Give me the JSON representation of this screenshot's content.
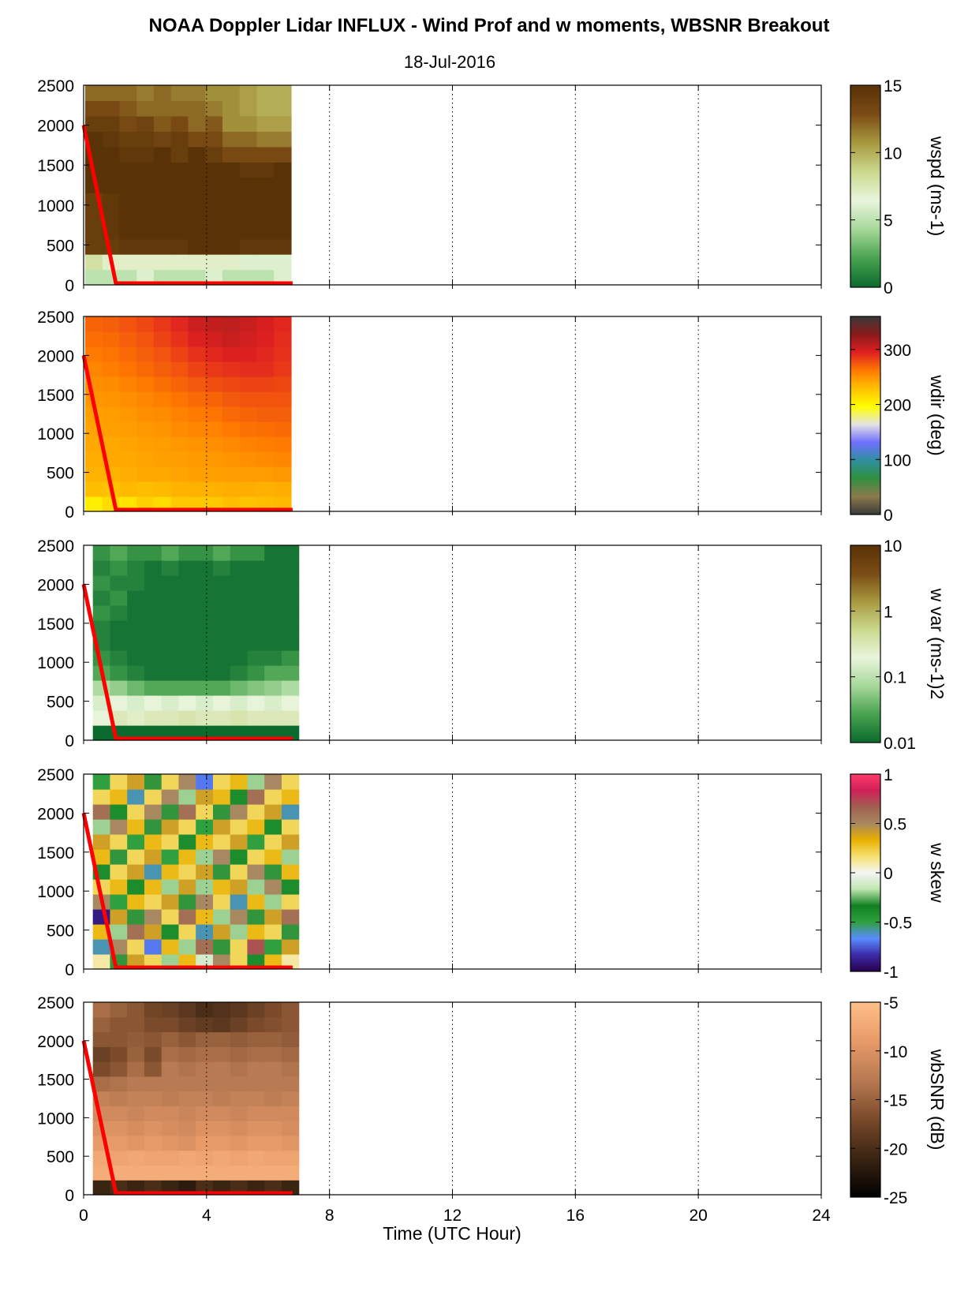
{
  "title": "NOAA Doppler Lidar INFLUX - Wind Prof and w moments, WBSNR Breakout",
  "subtitle": "18-Jul-2016",
  "chart_data": {
    "type": "heatmap",
    "xlabel": "Time (UTC Hour)",
    "xlim": [
      0,
      24
    ],
    "xticks": [
      0,
      4,
      8,
      12,
      16,
      20,
      24
    ],
    "gridlines_x": [
      4,
      8,
      12,
      16,
      20,
      24
    ],
    "ylim": [
      0,
      2500
    ],
    "yticks": [
      0,
      500,
      1000,
      1500,
      2000,
      2500
    ],
    "data_time_range": [
      0.3,
      7.0
    ],
    "overlay_line": {
      "color": "#ff0000",
      "x": [
        0,
        1.05,
        6.8
      ],
      "y": [
        2000,
        20,
        20
      ]
    },
    "panels": [
      {
        "variable": "wspd",
        "colorbar_label": "wspd (ms-1)",
        "clim": [
          0,
          15
        ],
        "colorbar_ticks": [
          0,
          5,
          10,
          15
        ],
        "colorbar_ticklabels": [
          "0",
          "5",
          "10",
          "15"
        ],
        "colormap": [
          "#0b6b2e",
          "#48a24f",
          "#a6d89a",
          "#e9f5dc",
          "#cbd98e",
          "#a8993f",
          "#7a4b14",
          "#5a3207"
        ],
        "x_start": 0.05,
        "x_end": 6.75,
        "rows": [
          [
            5,
            5,
            5,
            6,
            5,
            5,
            5,
            6,
            5,
            5,
            5,
            6
          ],
          [
            8,
            7,
            7,
            7,
            7,
            7,
            7,
            7,
            7,
            6,
            6,
            6
          ],
          [
            14,
            14,
            14.5,
            14.5,
            14.5,
            14.5,
            15,
            15,
            15,
            14.5,
            14.5,
            14.5
          ],
          [
            14,
            14.5,
            15,
            15,
            15,
            15,
            15,
            15,
            15,
            15,
            15,
            15
          ],
          [
            14,
            14.5,
            15,
            15,
            15,
            15,
            15,
            15,
            15,
            15,
            15,
            15
          ],
          [
            14,
            14.5,
            15,
            15,
            15,
            15,
            15,
            15,
            15,
            15,
            15,
            15
          ],
          [
            15,
            15,
            15,
            15,
            15,
            15,
            15,
            15,
            15,
            15,
            15,
            15
          ],
          [
            15,
            15,
            15,
            15,
            15,
            15,
            15,
            15,
            15,
            14.5,
            14.5,
            15
          ],
          [
            15,
            15,
            14.5,
            14.5,
            15,
            14,
            15,
            14,
            13,
            13,
            13,
            13
          ],
          [
            15,
            14.5,
            14,
            14,
            13.5,
            14,
            13,
            13,
            12,
            12,
            11.5,
            11.5
          ],
          [
            14,
            14,
            13,
            13.5,
            12.5,
            13,
            12,
            12.5,
            11,
            11,
            10.5,
            10.5
          ],
          [
            13,
            13,
            12.5,
            12,
            12,
            12,
            12,
            11.5,
            11,
            10.5,
            10,
            10
          ],
          [
            12,
            12,
            12,
            11.5,
            12,
            11.5,
            11.5,
            11,
            11,
            10.5,
            10,
            10
          ]
        ]
      },
      {
        "variable": "wdir",
        "colorbar_label": "wdir (deg)",
        "clim": [
          0,
          360
        ],
        "colorbar_ticks": [
          0,
          100,
          200,
          300
        ],
        "colorbar_ticklabels": [
          "0",
          "100",
          "200",
          "300"
        ],
        "colormap": [
          "#3a3a3a",
          "#8d7a4c",
          "#2f8f3f",
          "#2f8f9f",
          "#6f6fff",
          "#e3e3e3",
          "#ffff00",
          "#ffc000",
          "#ff7a00",
          "#e02020",
          "#8a1a1a",
          "#3a3a3a"
        ],
        "x_start": 0.05,
        "x_end": 6.75,
        "rows": [
          [
            205,
            215,
            210,
            220,
            215,
            225,
            225,
            225,
            230,
            228,
            230,
            232
          ],
          [
            230,
            228,
            232,
            230,
            232,
            235,
            236,
            236,
            238,
            238,
            236,
            238
          ],
          [
            235,
            236,
            238,
            240,
            240,
            242,
            244,
            244,
            245,
            246,
            246,
            248
          ],
          [
            238,
            240,
            240,
            242,
            244,
            245,
            247,
            248,
            250,
            252,
            254,
            256
          ],
          [
            240,
            240,
            242,
            244,
            246,
            248,
            250,
            252,
            255,
            258,
            260,
            262
          ],
          [
            242,
            244,
            246,
            248,
            250,
            254,
            256,
            258,
            262,
            265,
            266,
            268
          ],
          [
            244,
            246,
            248,
            252,
            254,
            258,
            262,
            264,
            268,
            270,
            272,
            272
          ],
          [
            248,
            250,
            252,
            256,
            260,
            264,
            268,
            270,
            274,
            276,
            276,
            276
          ],
          [
            252,
            254,
            258,
            262,
            266,
            270,
            274,
            278,
            280,
            282,
            282,
            280
          ],
          [
            256,
            260,
            264,
            268,
            272,
            276,
            282,
            286,
            288,
            290,
            290,
            286
          ],
          [
            262,
            264,
            268,
            272,
            276,
            282,
            288,
            292,
            296,
            296,
            292,
            288
          ],
          [
            266,
            268,
            272,
            276,
            282,
            288,
            296,
            300,
            304,
            300,
            296,
            290
          ],
          [
            270,
            272,
            276,
            280,
            286,
            292,
            302,
            306,
            308,
            304,
            298,
            292
          ]
        ]
      },
      {
        "variable": "w var",
        "colorbar_label": "w var (ms-1)2",
        "clim": [
          0.01,
          10
        ],
        "scale": "log",
        "colorbar_ticks": [
          0.01,
          0.1,
          1,
          10
        ],
        "colorbar_ticklabels": [
          "0.01",
          "0.1",
          "1",
          "10"
        ],
        "colormap": [
          "#0b6b2e",
          "#48a24f",
          "#a6d89a",
          "#e9f5dc",
          "#cbd98e",
          "#a8993f",
          "#7a4b14",
          "#5a3207"
        ],
        "x_start": 0.3,
        "x_end": 7.0,
        "rows": [
          [
            0.01,
            0.01,
            0.01,
            0.01,
            0.01,
            0.01,
            0.01,
            0.01,
            0.01,
            0.01,
            0.01,
            0.01
          ],
          [
            0.2,
            0.3,
            0.25,
            0.3,
            0.3,
            0.35,
            0.3,
            0.3,
            0.35,
            0.3,
            0.3,
            0.3
          ],
          [
            0.15,
            0.2,
            0.15,
            0.2,
            0.15,
            0.2,
            0.15,
            0.2,
            0.15,
            0.2,
            0.15,
            0.2
          ],
          [
            0.08,
            0.06,
            0.04,
            0.03,
            0.03,
            0.03,
            0.03,
            0.03,
            0.04,
            0.05,
            0.06,
            0.08
          ],
          [
            0.03,
            0.02,
            0.015,
            0.012,
            0.012,
            0.012,
            0.012,
            0.012,
            0.015,
            0.02,
            0.03,
            0.03
          ],
          [
            0.02,
            0.015,
            0.012,
            0.012,
            0.012,
            0.012,
            0.012,
            0.012,
            0.012,
            0.015,
            0.015,
            0.02
          ],
          [
            0.015,
            0.012,
            0.012,
            0.012,
            0.012,
            0.012,
            0.012,
            0.012,
            0.012,
            0.012,
            0.012,
            0.012
          ],
          [
            0.015,
            0.012,
            0.012,
            0.012,
            0.012,
            0.012,
            0.012,
            0.012,
            0.012,
            0.012,
            0.012,
            0.012
          ],
          [
            0.02,
            0.015,
            0.012,
            0.012,
            0.012,
            0.012,
            0.012,
            0.012,
            0.012,
            0.012,
            0.012,
            0.012
          ],
          [
            0.015,
            0.02,
            0.012,
            0.012,
            0.012,
            0.012,
            0.012,
            0.012,
            0.012,
            0.012,
            0.012,
            0.012
          ],
          [
            0.02,
            0.015,
            0.015,
            0.012,
            0.012,
            0.012,
            0.012,
            0.012,
            0.012,
            0.012,
            0.012,
            0.012
          ],
          [
            0.015,
            0.02,
            0.015,
            0.012,
            0.015,
            0.012,
            0.012,
            0.015,
            0.012,
            0.012,
            0.012,
            0.012
          ],
          [
            0.02,
            0.03,
            0.02,
            0.02,
            0.03,
            0.02,
            0.02,
            0.03,
            0.02,
            0.02,
            0.012,
            0.012
          ]
        ]
      },
      {
        "variable": "w skew",
        "colorbar_label": "w skew",
        "clim": [
          -1,
          1
        ],
        "colorbar_ticks": [
          -1,
          -0.5,
          0,
          0.5,
          1
        ],
        "colorbar_ticklabels": [
          "-1",
          "-0.5",
          "0",
          "0.5",
          "1"
        ],
        "colormap": [
          "#2a004d",
          "#3a2aa8",
          "#5a8cff",
          "#2f9f3f",
          "#0f7f1f",
          "#bfe6b0",
          "#f5f5f5",
          "#f5e070",
          "#e8b000",
          "#a88860",
          "#a06050",
          "#d02058",
          "#ff3a6a"
        ],
        "x_start": 0.3,
        "x_end": 7.0,
        "rows": [
          [
            0.1,
            -0.3,
            0.4,
            0.2,
            -0.2,
            0.3,
            -0.1,
            0.5,
            0.2,
            -0.4,
            0.3,
            0.1
          ],
          [
            -0.6,
            0.5,
            0.2,
            -0.7,
            0.3,
            -0.2,
            0.6,
            -0.3,
            0.2,
            0.7,
            -0.5,
            0.4
          ],
          [
            0.3,
            -0.2,
            0.6,
            0.4,
            -0.4,
            0.2,
            -0.6,
            0.4,
            -0.2,
            0.3,
            0.2,
            -0.3
          ],
          [
            -0.9,
            0.4,
            -0.3,
            0.5,
            0.2,
            0.6,
            0.3,
            -0.2,
            0.5,
            -0.3,
            0.4,
            0.6
          ],
          [
            0.5,
            -0.5,
            0.3,
            0.2,
            0.4,
            -0.3,
            0.5,
            0.2,
            -0.6,
            0.3,
            -0.2,
            0.2
          ],
          [
            0.2,
            0.3,
            -0.4,
            0.3,
            -0.2,
            0.4,
            -0.2,
            0.3,
            0.4,
            -0.2,
            0.5,
            -0.4
          ],
          [
            -0.4,
            0.2,
            0.4,
            -0.6,
            0.3,
            0.2,
            0.4,
            -0.3,
            0.2,
            0.5,
            -0.3,
            0.3
          ],
          [
            0.3,
            -0.3,
            0.2,
            0.4,
            -0.5,
            0.3,
            -0.2,
            0.5,
            -0.4,
            0.2,
            0.3,
            -0.2
          ],
          [
            0.4,
            0.2,
            -0.5,
            0.3,
            0.2,
            -0.4,
            0.3,
            0.2,
            0.4,
            -0.5,
            0.2,
            0.4
          ],
          [
            -0.2,
            0.5,
            0.3,
            -0.3,
            0.4,
            0.2,
            -0.5,
            0.4,
            0.2,
            0.3,
            -0.4,
            0.2
          ],
          [
            0.6,
            -0.4,
            0.2,
            0.5,
            -0.3,
            0.6,
            0.2,
            -0.3,
            0.5,
            0.2,
            0.4,
            -0.6
          ],
          [
            0.2,
            0.3,
            -0.6,
            0.2,
            0.5,
            -0.2,
            0.4,
            0.3,
            -0.4,
            0.6,
            0.2,
            0.3
          ],
          [
            -0.5,
            0.2,
            0.4,
            -0.3,
            0.2,
            0.5,
            -0.7,
            0.2,
            0.3,
            -0.2,
            0.5,
            0.2
          ]
        ]
      },
      {
        "variable": "wbSNR",
        "colorbar_label": "wbSNR (dB)",
        "clim": [
          -25,
          -5
        ],
        "colorbar_ticks": [
          -25,
          -20,
          -15,
          -10,
          -5
        ],
        "colorbar_ticklabels": [
          "-25",
          "-20",
          "-15",
          "-10",
          "-5"
        ],
        "colormap": [
          "#000000",
          "#3a2412",
          "#7a4a2a",
          "#b87a52",
          "#e89a68",
          "#ffbf88"
        ],
        "x_start": 0.3,
        "x_end": 7.0,
        "rows": [
          [
            -21,
            -20,
            -21,
            -20,
            -21,
            -22,
            -20,
            -21,
            -20,
            -21,
            -20,
            -21
          ],
          [
            -7,
            -7,
            -7,
            -7,
            -7,
            -7,
            -7,
            -7,
            -7,
            -7,
            -7,
            -7
          ],
          [
            -7.5,
            -8,
            -7.5,
            -8,
            -8,
            -7.5,
            -8,
            -7.5,
            -8,
            -7.5,
            -8,
            -8
          ],
          [
            -9,
            -9,
            -9.5,
            -9,
            -9.5,
            -10,
            -9,
            -9,
            -9.5,
            -9,
            -9,
            -9.5
          ],
          [
            -10,
            -10,
            -10.5,
            -10,
            -10.5,
            -11,
            -10,
            -10,
            -10.5,
            -10,
            -10,
            -10.5
          ],
          [
            -11,
            -11,
            -11.5,
            -11,
            -11,
            -11.5,
            -11,
            -11,
            -11.5,
            -11,
            -11,
            -11
          ],
          [
            -12,
            -12.5,
            -12,
            -12,
            -12.5,
            -12,
            -12,
            -12.5,
            -12,
            -12,
            -12.5,
            -12
          ],
          [
            -14,
            -13.5,
            -13,
            -13,
            -13,
            -13,
            -13,
            -13,
            -13,
            -13,
            -13,
            -13
          ],
          [
            -17,
            -16,
            -14,
            -16,
            -13,
            -13.5,
            -13,
            -13,
            -13.5,
            -13,
            -13,
            -13.5
          ],
          [
            -18,
            -17,
            -15,
            -17,
            -14,
            -14.5,
            -14,
            -14,
            -14.5,
            -14,
            -14,
            -14.5
          ],
          [
            -16,
            -16,
            -15.5,
            -16,
            -15,
            -16,
            -15,
            -15,
            -15.5,
            -15,
            -15,
            -15.5
          ],
          [
            -15,
            -16,
            -16,
            -17,
            -17,
            -18,
            -18.5,
            -19,
            -18,
            -17,
            -16.5,
            -16
          ],
          [
            -14,
            -15,
            -16,
            -17.5,
            -18,
            -19,
            -20,
            -19.5,
            -19,
            -18,
            -17,
            -16
          ]
        ]
      }
    ]
  }
}
